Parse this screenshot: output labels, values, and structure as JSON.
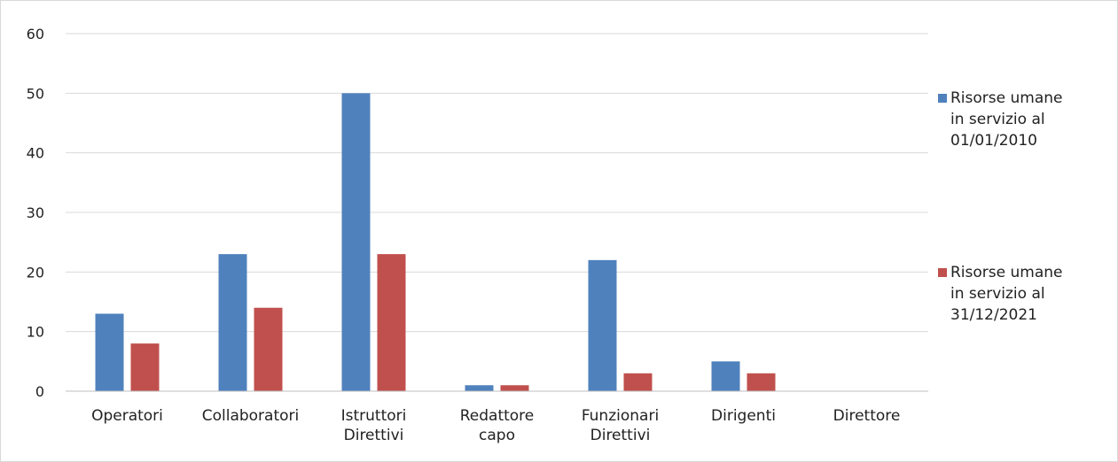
{
  "chart_data": {
    "type": "bar",
    "categories": [
      [
        "Operatori"
      ],
      [
        "Collaboratori"
      ],
      [
        "Istruttori",
        "Direttivi"
      ],
      [
        "Redattore",
        "capo"
      ],
      [
        "Funzionari",
        "Direttivi"
      ],
      [
        "Dirigenti"
      ],
      [
        "Direttore"
      ]
    ],
    "series": [
      {
        "name": [
          "Risorse umane",
          "in servizio al",
          "01/01/2010"
        ],
        "color": "#4f81bd",
        "values": [
          13,
          23,
          50,
          1,
          22,
          5,
          0
        ]
      },
      {
        "name": [
          "Risorse umane",
          "in servizio al",
          "31/12/2021"
        ],
        "color": "#c0504d",
        "values": [
          8,
          14,
          23,
          1,
          3,
          3,
          0
        ]
      }
    ],
    "ylim": [
      0,
      60
    ],
    "yticks": [
      0,
      10,
      20,
      30,
      40,
      50,
      60
    ],
    "grid": true,
    "legend_position": "right"
  }
}
